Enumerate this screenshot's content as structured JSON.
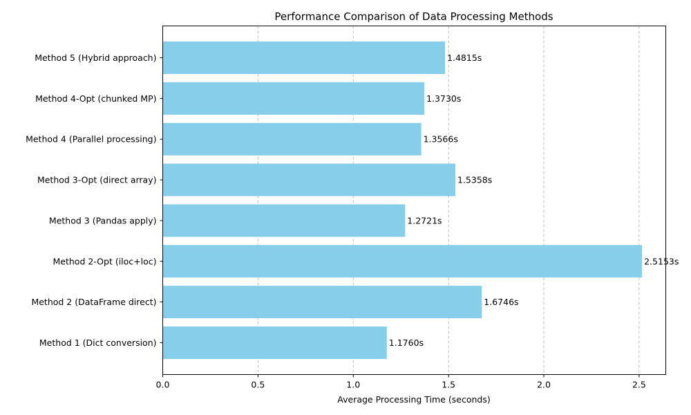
{
  "chart_data": {
    "type": "bar",
    "orientation": "horizontal",
    "title": "Performance Comparison of Data Processing Methods",
    "xlabel": "Average Processing Time (seconds)",
    "ylabel": "",
    "xlim": [
      0,
      2.64
    ],
    "x_ticks": [
      "0.0",
      "0.5",
      "1.0",
      "1.5",
      "2.0",
      "2.5"
    ],
    "x_tick_values": [
      0,
      0.5,
      1.0,
      1.5,
      2.0,
      2.5
    ],
    "grid": "x-dashed",
    "bar_color": "#87CEEB",
    "categories": [
      "Method 1 (Dict conversion)",
      "Method 2 (DataFrame direct)",
      "Method 2-Opt (iloc+loc)",
      "Method 3 (Pandas apply)",
      "Method 3-Opt (direct array)",
      "Method 4 (Parallel processing)",
      "Method 4-Opt (chunked MP)",
      "Method 5 (Hybrid approach)"
    ],
    "values": [
      1.176,
      1.6746,
      2.5153,
      1.2721,
      1.5358,
      1.3566,
      1.373,
      1.4815
    ],
    "data_labels": [
      "1.1760s",
      "1.6746s",
      "2.5153s",
      "1.2721s",
      "1.5358s",
      "1.3566s",
      "1.3730s",
      "1.4815s"
    ]
  }
}
